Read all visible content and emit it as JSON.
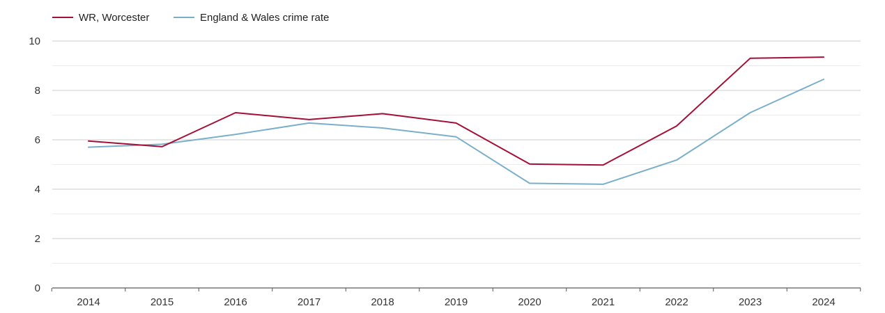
{
  "chart_data": {
    "type": "line",
    "title": "",
    "xlabel": "",
    "ylabel": "",
    "categories": [
      "2014",
      "2015",
      "2016",
      "2017",
      "2018",
      "2019",
      "2020",
      "2021",
      "2022",
      "2023",
      "2024"
    ],
    "ylim": [
      0,
      10
    ],
    "yticks": [
      0,
      2,
      4,
      6,
      8,
      10
    ],
    "grid": true,
    "legend_position": "top-left",
    "series": [
      {
        "name": "WR, Worcester",
        "color": "#a50f36",
        "values": [
          5.95,
          5.72,
          7.1,
          6.82,
          7.06,
          6.68,
          5.02,
          4.98,
          6.56,
          9.3,
          9.35
        ]
      },
      {
        "name": "England & Wales crime rate",
        "color": "#7aafcc",
        "values": [
          5.7,
          5.82,
          6.22,
          6.68,
          6.48,
          6.12,
          4.24,
          4.2,
          5.18,
          7.1,
          8.45
        ]
      }
    ]
  }
}
